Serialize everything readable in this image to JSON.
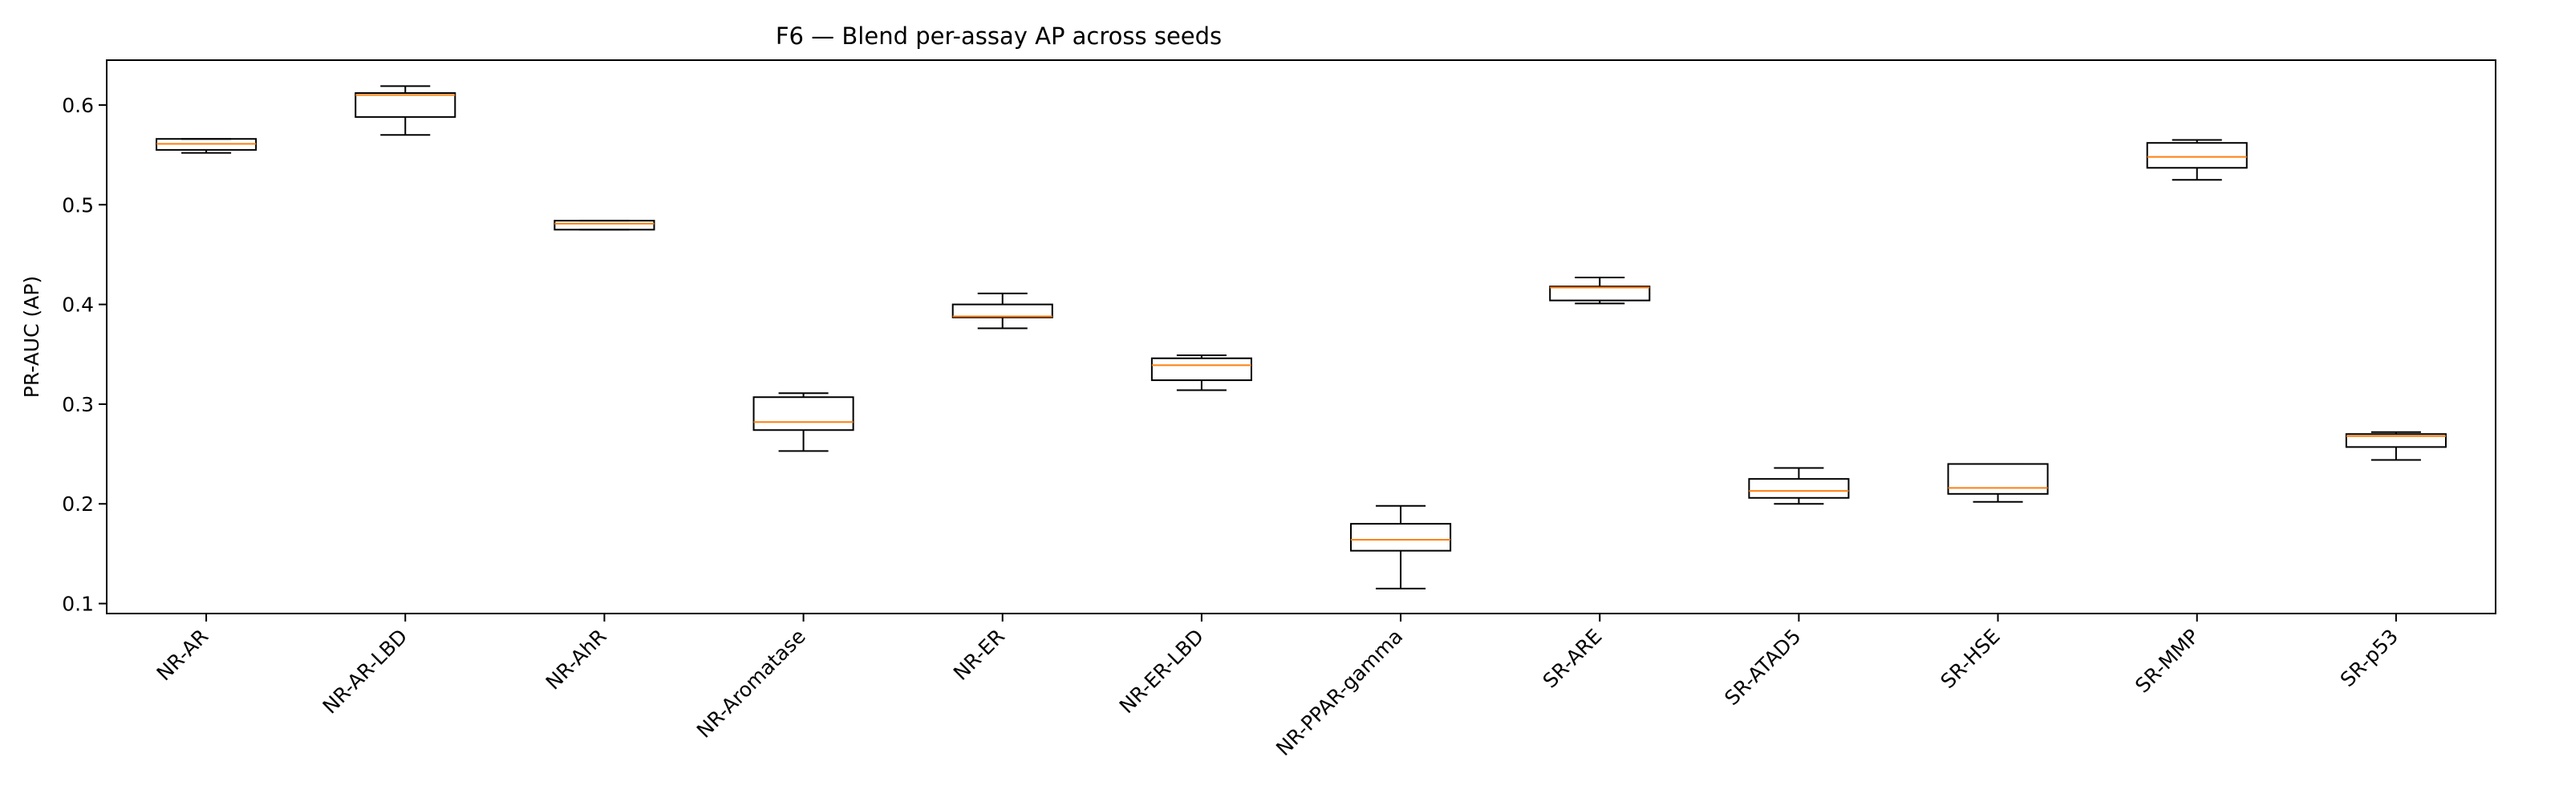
{
  "chart_data": {
    "type": "box",
    "title": "F6 — Blend per-assay AP across seeds",
    "xlabel": "",
    "ylabel": "PR-AUC (AP)",
    "ylim": [
      0.09,
      0.645
    ],
    "yticks": [
      0.1,
      0.2,
      0.3,
      0.4,
      0.5,
      0.6
    ],
    "ytick_labels": [
      "0.1",
      "0.2",
      "0.3",
      "0.4",
      "0.5",
      "0.6"
    ],
    "grid": false,
    "legend": "none",
    "colors": {
      "box": "#000000",
      "median": "#ff7f0e",
      "background": "#ffffff"
    },
    "categories": [
      "NR-AR",
      "NR-AR-LBD",
      "NR-AhR",
      "NR-Aromatase",
      "NR-ER",
      "NR-ER-LBD",
      "NR-PPAR-gamma",
      "SR-ARE",
      "SR-ATAD5",
      "SR-HSE",
      "SR-MMP",
      "SR-p53"
    ],
    "boxes": [
      {
        "whislo": 0.552,
        "q1": 0.555,
        "med": 0.561,
        "q3": 0.566,
        "whishi": 0.566
      },
      {
        "whislo": 0.57,
        "q1": 0.588,
        "med": 0.61,
        "q3": 0.612,
        "whishi": 0.619
      },
      {
        "whislo": 0.475,
        "q1": 0.475,
        "med": 0.481,
        "q3": 0.484,
        "whishi": 0.484
      },
      {
        "whislo": 0.253,
        "q1": 0.274,
        "med": 0.282,
        "q3": 0.307,
        "whishi": 0.311
      },
      {
        "whislo": 0.376,
        "q1": 0.387,
        "med": 0.388,
        "q3": 0.4,
        "whishi": 0.411
      },
      {
        "whislo": 0.314,
        "q1": 0.324,
        "med": 0.339,
        "q3": 0.346,
        "whishi": 0.349
      },
      {
        "whislo": 0.115,
        "q1": 0.153,
        "med": 0.164,
        "q3": 0.18,
        "whishi": 0.198
      },
      {
        "whislo": 0.401,
        "q1": 0.404,
        "med": 0.417,
        "q3": 0.418,
        "whishi": 0.427
      },
      {
        "whislo": 0.2,
        "q1": 0.206,
        "med": 0.213,
        "q3": 0.225,
        "whishi": 0.236
      },
      {
        "whislo": 0.202,
        "q1": 0.21,
        "med": 0.216,
        "q3": 0.24,
        "whishi": 0.24
      },
      {
        "whislo": 0.525,
        "q1": 0.537,
        "med": 0.548,
        "q3": 0.562,
        "whishi": 0.565
      },
      {
        "whislo": 0.244,
        "q1": 0.257,
        "med": 0.268,
        "q3": 0.27,
        "whishi": 0.272
      }
    ]
  }
}
